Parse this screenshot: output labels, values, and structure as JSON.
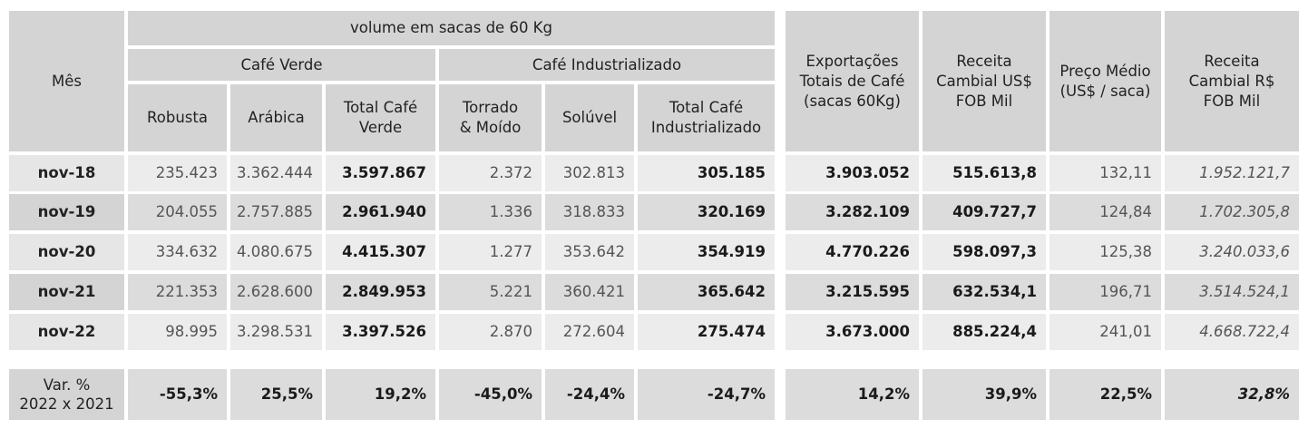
{
  "headers": {
    "month": "Mês",
    "volume_group": "volume em sacas de 60 Kg",
    "green_group": "Café Verde",
    "industrial_group": "Café Industrializado",
    "cols": [
      "Robusta",
      "Arábica",
      "Total Café Verde",
      "Torrado & Moído",
      "Solúvel",
      "Total Café Industrializado",
      "Exportações Totais de Café (sacas 60Kg)",
      "Receita Cambial US$ FOB Mil",
      "Preço Médio (US$ / saca)",
      "Receita Cambial R$ FOB Mil"
    ]
  },
  "rows": [
    {
      "month": "nov-18",
      "values": [
        "235.423",
        "3.362.444",
        "3.597.867",
        "2.372",
        "302.813",
        "305.185",
        "3.903.052",
        "515.613,8",
        "132,11",
        "1.952.121,7"
      ]
    },
    {
      "month": "nov-19",
      "values": [
        "204.055",
        "2.757.885",
        "2.961.940",
        "1.336",
        "318.833",
        "320.169",
        "3.282.109",
        "409.727,7",
        "124,84",
        "1.702.305,8"
      ]
    },
    {
      "month": "nov-20",
      "values": [
        "334.632",
        "4.080.675",
        "4.415.307",
        "1.277",
        "353.642",
        "354.919",
        "4.770.226",
        "598.097,3",
        "125,38",
        "3.240.033,6"
      ]
    },
    {
      "month": "nov-21",
      "values": [
        "221.353",
        "2.628.600",
        "2.849.953",
        "5.221",
        "360.421",
        "365.642",
        "3.215.595",
        "632.534,1",
        "196,71",
        "3.514.524,1"
      ]
    },
    {
      "month": "nov-22",
      "values": [
        "98.995",
        "3.298.531",
        "3.397.526",
        "2.870",
        "272.604",
        "275.474",
        "3.673.000",
        "885.224,4",
        "241,01",
        "4.668.722,4"
      ]
    }
  ],
  "variation": {
    "label_line1": "Var. %",
    "label_line2": "2022 x 2021",
    "values": [
      "-55,3%",
      "25,5%",
      "19,2%",
      "-45,0%",
      "-24,4%",
      "-24,7%",
      "14,2%",
      "39,9%",
      "22,5%",
      "32,8%"
    ]
  }
}
